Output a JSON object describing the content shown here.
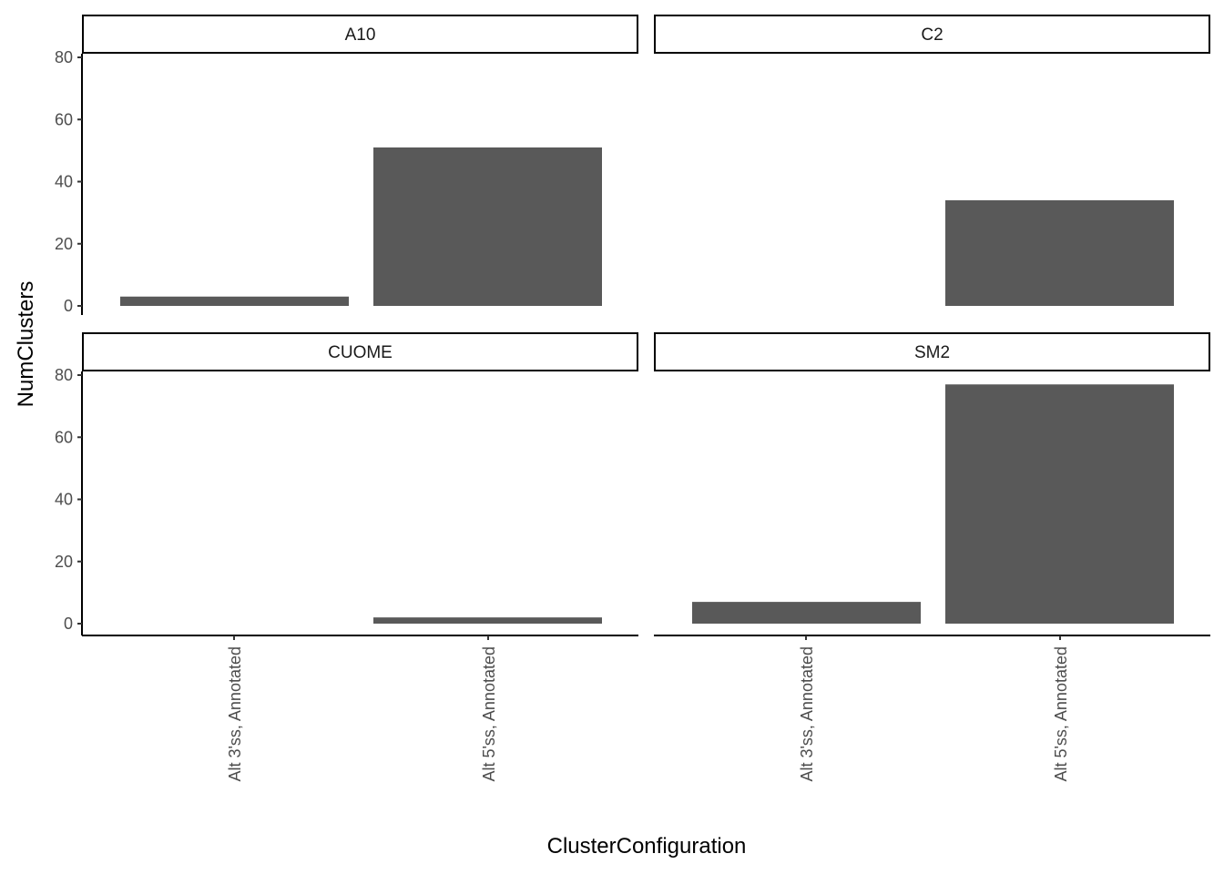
{
  "chart_data": {
    "type": "bar",
    "xlabel": "ClusterConfiguration",
    "ylabel": "NumClusters",
    "ylim": [
      0,
      80
    ],
    "yticks": [
      0,
      20,
      40,
      60,
      80
    ],
    "categories": [
      "Alt 3'ss, Annotated",
      "Alt 5'ss, Annotated"
    ],
    "bar_color": "#595959",
    "facets": [
      {
        "name": "A10",
        "values": [
          3,
          51
        ]
      },
      {
        "name": "C2",
        "values": [
          0,
          34
        ]
      },
      {
        "name": "CUOME",
        "values": [
          0,
          2
        ]
      },
      {
        "name": "SM2",
        "values": [
          7,
          77
        ]
      }
    ]
  }
}
